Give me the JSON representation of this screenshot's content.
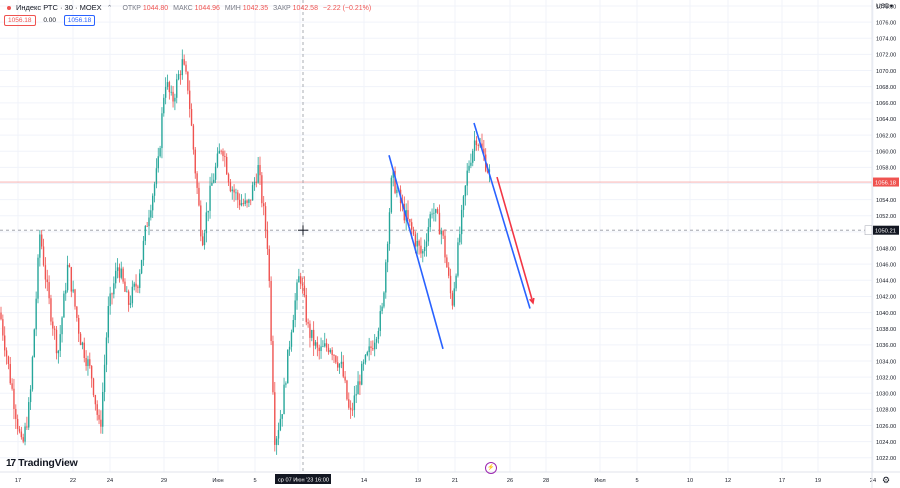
{
  "header": {
    "title": "Индекс РТС · 30 · MOEX",
    "open_label": "ОТКР",
    "open_value": "1044.80",
    "high_label": "МАКС",
    "high_value": "1044.96",
    "low_label": "МИН",
    "low_value": "1042.35",
    "close_label": "ЗАКР",
    "close_value": "1042.58",
    "change": "−2.22 (−0.21%)"
  },
  "subrow": {
    "sell": "1056.18",
    "spread": "0.00",
    "buy": "1056.18"
  },
  "currency": "USD▾",
  "logo": "TradingView",
  "crosshair_time": "ср 07 Июн '23   16:00",
  "colors": {
    "up": "#26a69a",
    "down": "#ef5350",
    "blue_line": "#2962ff",
    "red_line": "#f23645",
    "grid": "#f0f3fa"
  },
  "chart_data": {
    "type": "candlestick",
    "symbol": "Индекс РТС",
    "interval": "30",
    "exchange": "MOEX",
    "currency": "USD",
    "ylim": [
      1019,
      1078
    ],
    "y_ticks": [
      1020,
      1022,
      1024,
      1026,
      1028,
      1030,
      1032,
      1034,
      1036,
      1038,
      1040,
      1042,
      1044,
      1046,
      1048,
      1050,
      1052,
      1054,
      1056,
      1058,
      1060,
      1062,
      1064,
      1066,
      1068,
      1070,
      1072,
      1074,
      1076,
      1078
    ],
    "y_tick_labels": [
      "1020.00",
      "1022.00",
      "1024.00",
      "1026.00",
      "1028.00",
      "1030.00",
      "1032.00",
      "1034.00",
      "1036.00",
      "1038.00",
      "1040.00",
      "1042.00",
      "1044.00",
      "1046.00",
      "1048.00",
      "1050.00",
      "1052.00",
      "1054.00",
      "1056.00",
      "1058.00",
      "1060.00",
      "1062.00",
      "1064.00",
      "1066.00",
      "1068.00",
      "1070.00",
      "1072.00",
      "1074.00",
      "1076.00",
      "1078.00"
    ],
    "x_tick_labels": [
      "17",
      "22",
      "24",
      "29",
      "Июн",
      "5",
      "7",
      "14",
      "19",
      "21",
      "26",
      "28",
      "Июл",
      "5",
      "10",
      "12",
      "17",
      "19",
      "24"
    ],
    "current_price": 1056.18,
    "crosshair_price": "1050.21",
    "crosshair_price_value": 1050.21,
    "price_path_anchors": [
      [
        0,
        1040
      ],
      [
        10,
        1032
      ],
      [
        22,
        1023
      ],
      [
        30,
        1029
      ],
      [
        40,
        1050
      ],
      [
        48,
        1042
      ],
      [
        58,
        1035
      ],
      [
        68,
        1046
      ],
      [
        80,
        1037
      ],
      [
        92,
        1032
      ],
      [
        100,
        1025
      ],
      [
        108,
        1040
      ],
      [
        118,
        1046
      ],
      [
        128,
        1041
      ],
      [
        138,
        1044
      ],
      [
        148,
        1052
      ],
      [
        158,
        1058
      ],
      [
        165,
        1069
      ],
      [
        172,
        1066
      ],
      [
        182,
        1071
      ],
      [
        188,
        1068
      ],
      [
        195,
        1058
      ],
      [
        202,
        1049
      ],
      [
        212,
        1056
      ],
      [
        222,
        1061
      ],
      [
        230,
        1056
      ],
      [
        238,
        1054
      ],
      [
        248,
        1053
      ],
      [
        258,
        1058
      ],
      [
        268,
        1048
      ],
      [
        275,
        1024
      ],
      [
        282,
        1028
      ],
      [
        292,
        1039
      ],
      [
        300,
        1045
      ],
      [
        308,
        1038
      ],
      [
        318,
        1035
      ],
      [
        330,
        1036
      ],
      [
        342,
        1033
      ],
      [
        350,
        1027
      ],
      [
        360,
        1032
      ],
      [
        372,
        1036
      ],
      [
        382,
        1040
      ],
      [
        392,
        1057
      ],
      [
        402,
        1053
      ],
      [
        412,
        1050
      ],
      [
        422,
        1047
      ],
      [
        432,
        1053
      ],
      [
        442,
        1050
      ],
      [
        452,
        1041
      ],
      [
        460,
        1050
      ],
      [
        468,
        1058
      ],
      [
        476,
        1062
      ],
      [
        482,
        1060
      ],
      [
        490,
        1057
      ]
    ],
    "drawings": [
      {
        "name": "blue-line-1",
        "color": "#2962ff",
        "from": [
          389,
          1059.5
        ],
        "to": [
          443,
          1035.5
        ]
      },
      {
        "name": "blue-line-2",
        "color": "#2962ff",
        "from": [
          474,
          1063.5
        ],
        "to": [
          530,
          1040.5
        ]
      },
      {
        "name": "red-arrow",
        "color": "#f23645",
        "from": [
          497,
          1056.8
        ],
        "to": [
          533,
          1041.2
        ]
      }
    ]
  }
}
